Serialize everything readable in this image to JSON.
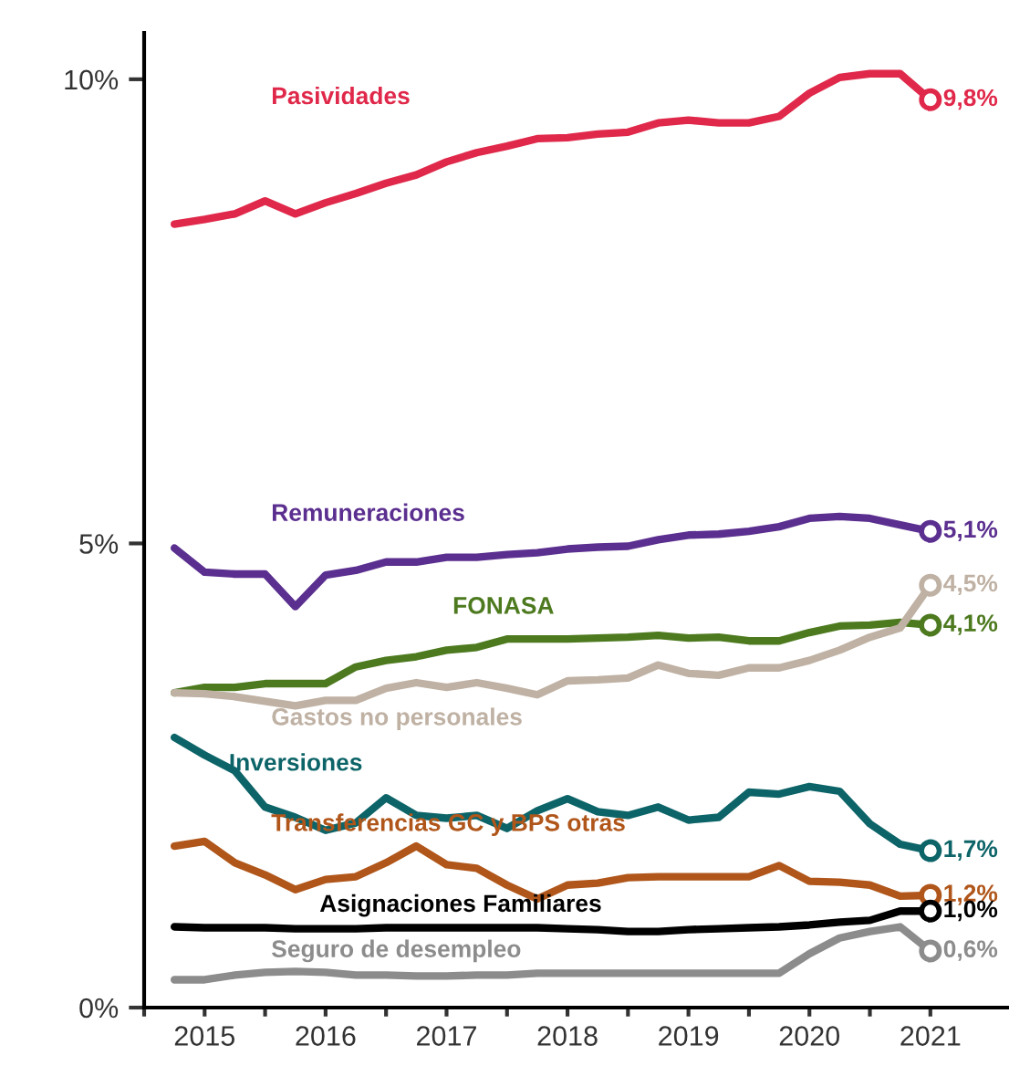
{
  "chart_data": {
    "type": "line",
    "x": [
      2015.25,
      2015.5,
      2015.75,
      2016.0,
      2016.25,
      2016.5,
      2016.75,
      2017.0,
      2017.25,
      2017.5,
      2017.75,
      2018.0,
      2018.25,
      2018.5,
      2018.75,
      2019.0,
      2019.25,
      2019.5,
      2019.75,
      2020.0,
      2020.25,
      2020.5,
      2020.75,
      2021.0,
      2021.25,
      2021.5
    ],
    "series": [
      {
        "name": "Pasividades",
        "color": "#e0284a",
        "values": [
          8.44,
          8.49,
          8.55,
          8.69,
          8.55,
          8.67,
          8.77,
          8.88,
          8.97,
          9.11,
          9.21,
          9.28,
          9.36,
          9.37,
          9.41,
          9.43,
          9.53,
          9.56,
          9.53,
          9.53,
          9.6,
          9.85,
          10.02,
          10.06,
          10.06,
          9.78
        ],
        "value_labels": [
          null,
          null,
          null,
          null,
          null,
          null,
          null,
          null,
          null,
          null,
          null,
          null,
          null,
          null,
          null,
          null,
          null,
          null,
          null,
          null,
          null,
          null,
          null,
          null,
          null,
          "9,8%"
        ]
      },
      {
        "name": "Remuneraciones",
        "color": "#5b2f8f",
        "values": [
          4.95,
          4.69,
          4.67,
          4.67,
          4.32,
          4.66,
          4.71,
          4.8,
          4.8,
          4.85,
          4.85,
          4.88,
          4.9,
          4.94,
          4.96,
          4.97,
          5.04,
          5.09,
          5.1,
          5.13,
          5.18,
          5.27,
          5.29,
          5.27,
          5.2,
          5.13
        ],
        "value_labels": [
          null,
          null,
          null,
          null,
          null,
          null,
          null,
          null,
          null,
          null,
          null,
          null,
          null,
          null,
          null,
          null,
          null,
          null,
          null,
          null,
          null,
          null,
          null,
          null,
          null,
          "5,1%"
        ]
      },
      {
        "name": "FONASA",
        "color": "#4d7a1f",
        "values": [
          3.39,
          3.45,
          3.45,
          3.49,
          3.49,
          3.49,
          3.67,
          3.74,
          3.78,
          3.85,
          3.88,
          3.97,
          3.97,
          3.97,
          3.98,
          3.99,
          4.01,
          3.98,
          3.99,
          3.95,
          3.95,
          4.04,
          4.11,
          4.12,
          4.15,
          4.12
        ],
        "value_labels": [
          null,
          null,
          null,
          null,
          null,
          null,
          null,
          null,
          null,
          null,
          null,
          null,
          null,
          null,
          null,
          null,
          null,
          null,
          null,
          null,
          null,
          null,
          null,
          null,
          null,
          "4,1%"
        ]
      },
      {
        "name": "Gastos no personales",
        "color": "#bfb1a3",
        "values": [
          3.39,
          3.38,
          3.35,
          3.3,
          3.25,
          3.31,
          3.31,
          3.44,
          3.5,
          3.45,
          3.5,
          3.44,
          3.37,
          3.52,
          3.53,
          3.55,
          3.69,
          3.6,
          3.58,
          3.66,
          3.66,
          3.74,
          3.85,
          3.99,
          4.09,
          4.55
        ],
        "value_labels": [
          null,
          null,
          null,
          null,
          null,
          null,
          null,
          null,
          null,
          null,
          null,
          null,
          null,
          null,
          null,
          null,
          null,
          null,
          null,
          null,
          null,
          null,
          null,
          null,
          null,
          "4,5%"
        ]
      },
      {
        "name": "Inversiones",
        "color": "#0d6468",
        "values": [
          2.91,
          2.72,
          2.55,
          2.16,
          2.05,
          1.91,
          1.99,
          2.26,
          2.07,
          2.04,
          2.07,
          1.93,
          2.12,
          2.25,
          2.11,
          2.07,
          2.16,
          2.02,
          2.05,
          2.32,
          2.3,
          2.38,
          2.33,
          1.98,
          1.76,
          1.69
        ],
        "value_labels": [
          null,
          null,
          null,
          null,
          null,
          null,
          null,
          null,
          null,
          null,
          null,
          null,
          null,
          null,
          null,
          null,
          null,
          null,
          null,
          null,
          null,
          null,
          null,
          null,
          null,
          "1,7%"
        ]
      },
      {
        "name": "Transferencias GC y BPS otras",
        "color": "#b0561a",
        "values": [
          1.74,
          1.79,
          1.56,
          1.43,
          1.27,
          1.38,
          1.41,
          1.56,
          1.74,
          1.54,
          1.5,
          1.32,
          1.17,
          1.32,
          1.34,
          1.4,
          1.41,
          1.41,
          1.41,
          1.41,
          1.53,
          1.36,
          1.35,
          1.32,
          1.2,
          1.21
        ],
        "value_labels": [
          null,
          null,
          null,
          null,
          null,
          null,
          null,
          null,
          null,
          null,
          null,
          null,
          null,
          null,
          null,
          null,
          null,
          null,
          null,
          null,
          null,
          null,
          null,
          null,
          null,
          "1,2%"
        ]
      },
      {
        "name": "Asignaciones Familiares",
        "color": "#000000",
        "values": [
          0.87,
          0.86,
          0.86,
          0.86,
          0.85,
          0.85,
          0.85,
          0.86,
          0.86,
          0.86,
          0.86,
          0.86,
          0.86,
          0.85,
          0.84,
          0.82,
          0.82,
          0.84,
          0.85,
          0.86,
          0.87,
          0.89,
          0.92,
          0.94,
          1.04,
          1.04
        ],
        "value_labels": [
          null,
          null,
          null,
          null,
          null,
          null,
          null,
          null,
          null,
          null,
          null,
          null,
          null,
          null,
          null,
          null,
          null,
          null,
          null,
          null,
          null,
          null,
          null,
          null,
          null,
          "1,0%"
        ]
      },
      {
        "name": "Seguro de desempleo",
        "color": "#8c8c8c",
        "values": [
          0.3,
          0.3,
          0.35,
          0.38,
          0.39,
          0.38,
          0.35,
          0.35,
          0.34,
          0.34,
          0.35,
          0.35,
          0.37,
          0.37,
          0.37,
          0.37,
          0.37,
          0.37,
          0.37,
          0.37,
          0.37,
          0.58,
          0.75,
          0.82,
          0.87,
          0.61
        ],
        "value_labels": [
          null,
          null,
          null,
          null,
          null,
          null,
          null,
          null,
          null,
          null,
          null,
          null,
          null,
          null,
          null,
          null,
          null,
          null,
          null,
          null,
          null,
          null,
          null,
          null,
          null,
          "0,6%"
        ]
      }
    ],
    "xlim": [
      2015.0,
      2022.15
    ],
    "xticks": [
      {
        "value": 2015,
        "label": null
      },
      {
        "value": 2016,
        "label": null
      },
      {
        "value": 2017,
        "label": null
      },
      {
        "value": 2018,
        "label": null
      },
      {
        "value": 2019,
        "label": null
      },
      {
        "value": 2020,
        "label": null
      },
      {
        "value": 2021,
        "label": null
      },
      {
        "value": 2015.5,
        "label": "2015"
      },
      {
        "value": 2016.5,
        "label": "2016"
      },
      {
        "value": 2017.5,
        "label": "2017"
      },
      {
        "value": 2018.5,
        "label": "2018"
      },
      {
        "value": 2019.5,
        "label": "2019"
      },
      {
        "value": 2020.5,
        "label": "2020"
      },
      {
        "value": 2021.5,
        "label": "2021"
      }
    ],
    "ylim": [
      0,
      10.5
    ],
    "yticks": [
      {
        "value": 0,
        "label": "0%"
      },
      {
        "value": 5,
        "label": "5%"
      },
      {
        "value": 10,
        "label": "10%"
      }
    ],
    "line_style": "solid"
  }
}
